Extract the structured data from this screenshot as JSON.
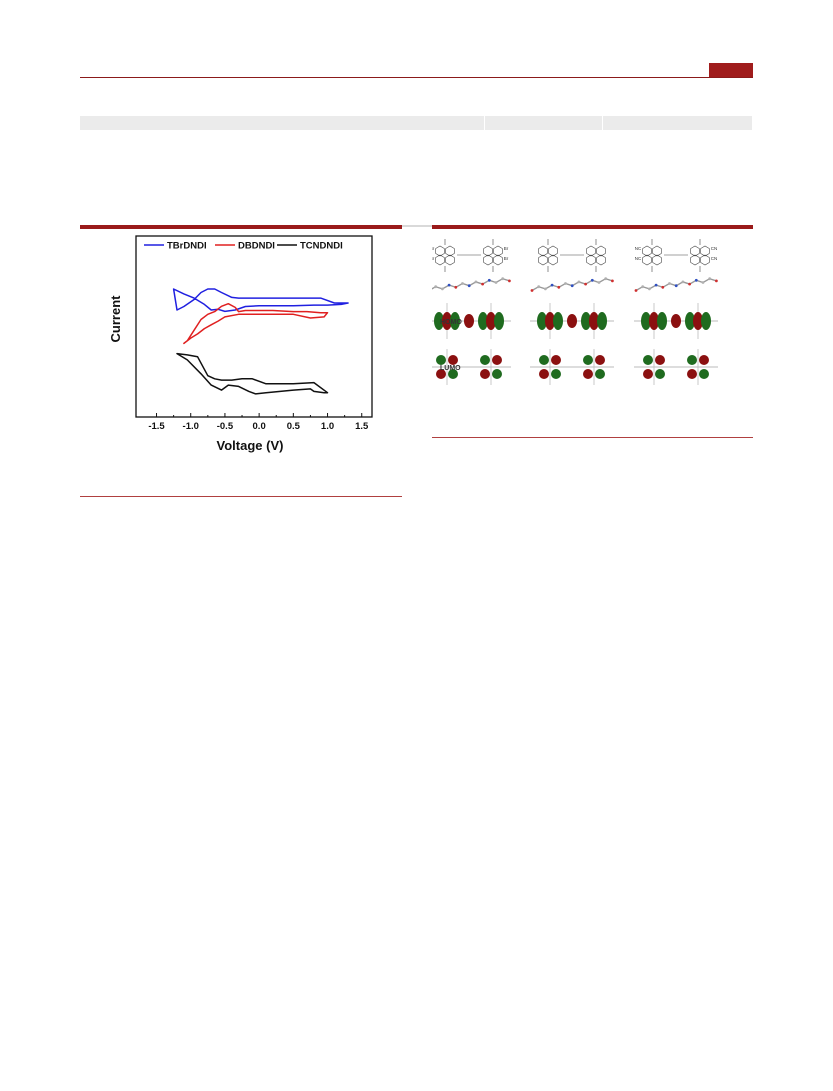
{
  "colors": {
    "accent": "#9a1a1a",
    "band": "#ebebeb",
    "TBrDNDI": "#2020e0",
    "DBDNDI": "#e02020",
    "TCNDNDI": "#111111",
    "orbital_green": "#1f6b1f",
    "orbital_red": "#8b1010"
  },
  "chart_data": {
    "type": "line",
    "xlabel": "Voltage (V)",
    "ylabel": "Current",
    "xlim": [
      -1.8,
      1.65
    ],
    "xticks": [
      "-1.5",
      "-1.0",
      "-0.5",
      "0.0",
      "0.5",
      "1.0",
      "1.5"
    ],
    "yticks_shown": false,
    "grid": false,
    "legend": "top",
    "series": [
      {
        "name": "TBrDNDI",
        "color": "#2020e0",
        "offset_level": "top",
        "x": [
          -1.2,
          -1.1,
          -0.95,
          -0.85,
          -0.75,
          -0.65,
          -0.55,
          -0.4,
          -0.3,
          -0.2,
          0.0,
          0.5,
          0.9,
          1.1,
          1.3,
          1.2,
          1.0,
          0.8,
          0.5,
          0.0,
          -0.2,
          -0.35,
          -0.5,
          -0.6,
          -0.7,
          -0.8,
          -0.95,
          -1.1,
          -1.25,
          -1.2
        ],
        "y": [
          0.8,
          0.75,
          0.65,
          0.55,
          0.5,
          0.5,
          0.55,
          0.62,
          0.63,
          0.63,
          0.63,
          0.63,
          0.63,
          0.7,
          0.7,
          0.72,
          0.73,
          0.73,
          0.74,
          0.74,
          0.75,
          0.8,
          0.82,
          0.79,
          0.8,
          0.72,
          0.63,
          0.57,
          0.5,
          0.8
        ]
      },
      {
        "name": "DBDNDI",
        "color": "#e02020",
        "offset_level": "middle",
        "x": [
          -1.1,
          -1.0,
          -0.9,
          -0.8,
          -0.7,
          -0.6,
          -0.5,
          -0.3,
          0.0,
          0.5,
          0.75,
          0.95,
          1.0,
          0.9,
          0.7,
          0.5,
          0.2,
          -0.2,
          -0.3,
          -0.35,
          -0.45,
          -0.55,
          -0.65,
          -0.75,
          -0.85,
          -0.95,
          -1.05,
          -1.1
        ],
        "y": [
          0.8,
          0.7,
          0.62,
          0.52,
          0.45,
          0.38,
          0.3,
          0.25,
          0.25,
          0.25,
          0.32,
          0.3,
          0.22,
          0.22,
          0.2,
          0.2,
          0.18,
          0.18,
          0.2,
          0.12,
          0.05,
          0.1,
          0.2,
          0.25,
          0.35,
          0.55,
          0.75,
          0.8
        ]
      },
      {
        "name": "TCNDNDI",
        "color": "#111111",
        "offset_level": "bottom",
        "x": [
          -1.2,
          -1.05,
          -0.9,
          -0.75,
          -0.65,
          -0.55,
          -0.4,
          -0.25,
          -0.1,
          0.1,
          0.5,
          0.8,
          1.0,
          0.95,
          0.8,
          0.75,
          0.5,
          0.1,
          -0.05,
          -0.15,
          -0.3,
          -0.45,
          -0.55,
          -0.7,
          -0.85,
          -1.05,
          -1.2
        ],
        "y": [
          0.2,
          0.22,
          0.25,
          0.55,
          0.6,
          0.62,
          0.62,
          0.6,
          0.6,
          0.68,
          0.68,
          0.66,
          0.82,
          0.82,
          0.8,
          0.76,
          0.78,
          0.82,
          0.84,
          0.8,
          0.72,
          0.7,
          0.78,
          0.7,
          0.52,
          0.3,
          0.2
        ]
      }
    ]
  },
  "orbitals": {
    "rows": [
      "HOMO",
      "LUMO"
    ],
    "structure_labels": {
      "col1": [
        "Br",
        "Br",
        "Br",
        "Br"
      ],
      "col3": [
        "NC",
        "NC",
        "CN",
        "CN"
      ]
    }
  }
}
